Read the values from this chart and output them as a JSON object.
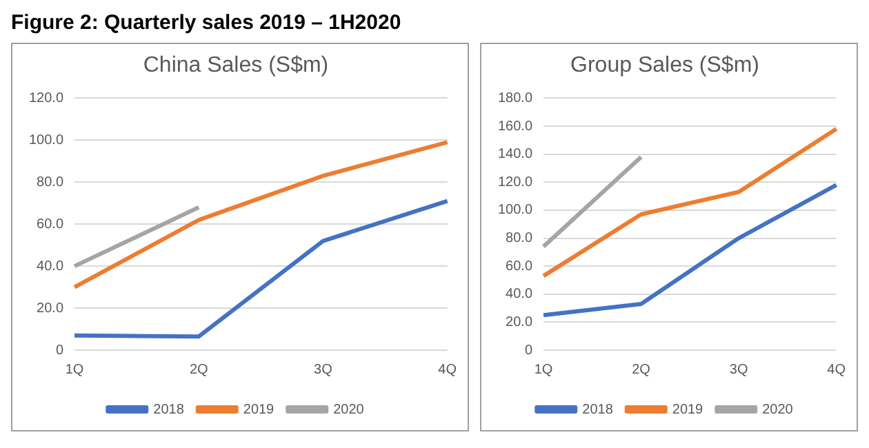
{
  "chart_data": [
    {
      "type": "line",
      "title": "China Sales (S$m)",
      "annotations": [
        "Figure 2: Quarterly sales 2019 – 1H2020"
      ],
      "categories": [
        "1Q",
        "2Q",
        "3Q",
        "4Q"
      ],
      "series": [
        {
          "name": "2018",
          "color": "#4472c4",
          "values": [
            7,
            6.5,
            52,
            71
          ]
        },
        {
          "name": "2019",
          "color": "#ed7d31",
          "values": [
            30,
            62,
            83,
            99
          ]
        },
        {
          "name": "2020",
          "color": "#a5a5a5",
          "values": [
            40,
            68,
            null,
            null
          ]
        }
      ],
      "ylim": [
        0,
        120
      ],
      "yticks": [
        {
          "value": 0,
          "label": "0"
        },
        {
          "value": 20,
          "label": "20.0"
        },
        {
          "value": 40,
          "label": "40.0"
        },
        {
          "value": 60,
          "label": "60.0"
        },
        {
          "value": 80,
          "label": "80.0"
        },
        {
          "value": 100,
          "label": "100.0"
        },
        {
          "value": 120,
          "label": "120.0"
        }
      ],
      "grid": "y",
      "legend": "bottom",
      "marker": "none",
      "line_style": "solid"
    },
    {
      "type": "line",
      "title": "Group Sales (S$m)",
      "categories": [
        "1Q",
        "2Q",
        "3Q",
        "4Q"
      ],
      "series": [
        {
          "name": "2018",
          "color": "#4472c4",
          "values": [
            25,
            33,
            80,
            118
          ]
        },
        {
          "name": "2019",
          "color": "#ed7d31",
          "values": [
            53,
            97,
            113,
            158
          ]
        },
        {
          "name": "2020",
          "color": "#a5a5a5",
          "values": [
            74,
            138,
            null,
            null
          ]
        }
      ],
      "ylim": [
        0,
        180
      ],
      "yticks": [
        {
          "value": 0,
          "label": "0"
        },
        {
          "value": 20,
          "label": "20.0"
        },
        {
          "value": 40,
          "label": "40.0"
        },
        {
          "value": 60,
          "label": "60.0"
        },
        {
          "value": 80,
          "label": "80.0"
        },
        {
          "value": 100,
          "label": "100.0"
        },
        {
          "value": 120,
          "label": "120.0"
        },
        {
          "value": 140,
          "label": "140.0"
        },
        {
          "value": 160,
          "label": "160.0"
        },
        {
          "value": 180,
          "label": "180.0"
        }
      ],
      "grid": "y",
      "legend": "bottom",
      "marker": "none",
      "line_style": "solid"
    }
  ]
}
